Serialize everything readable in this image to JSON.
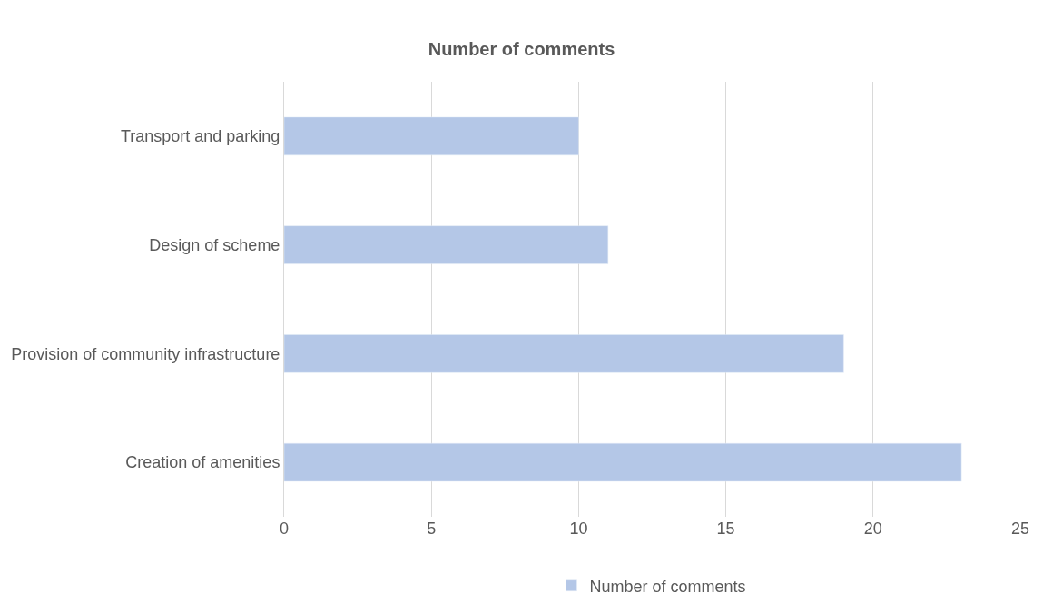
{
  "chart_data": {
    "type": "bar",
    "orientation": "horizontal",
    "title": "Number of comments",
    "categories": [
      "Transport and parking",
      "Design of scheme",
      "Provision of community infrastructure",
      "Creation of amenities"
    ],
    "series": [
      {
        "name": "Number of comments",
        "color": "#b4c7e7",
        "values": [
          10,
          11,
          19,
          23
        ]
      }
    ],
    "xlim": [
      0,
      25
    ],
    "xticks": [
      0,
      5,
      10,
      15,
      20,
      25
    ],
    "grid": "x",
    "legend": "bottom"
  }
}
